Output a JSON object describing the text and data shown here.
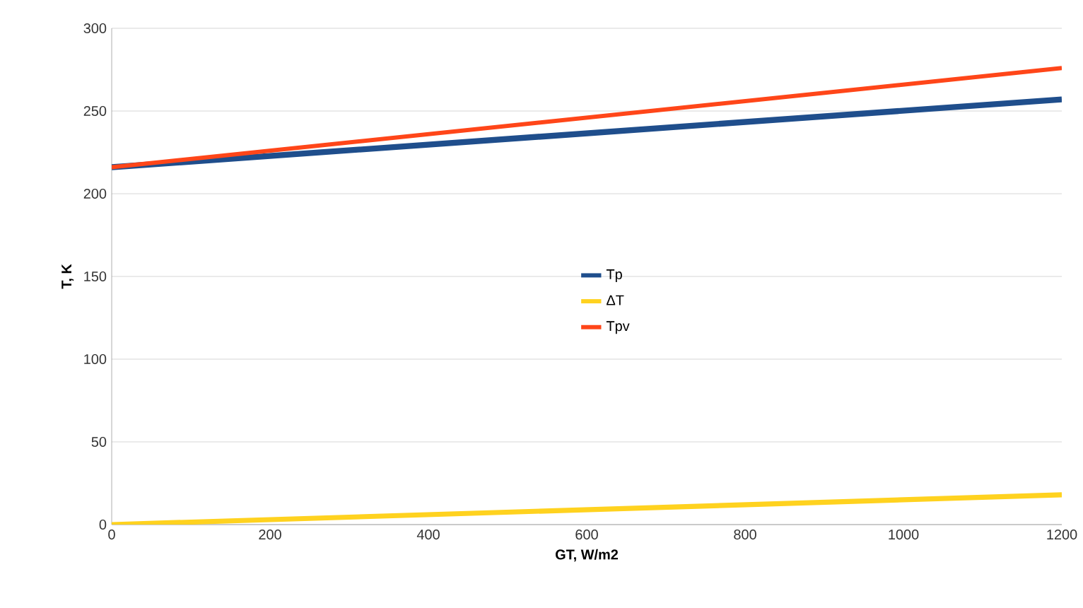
{
  "chart_data": {
    "type": "line",
    "xlabel": "GT, W/m2",
    "ylabel": "T, K",
    "x": [
      0,
      1200
    ],
    "series": [
      {
        "name": "Tp",
        "color": "#1f4e8c",
        "values": [
          216,
          257
        ]
      },
      {
        "name": "ΔT",
        "color": "#ffd21f",
        "values": [
          0,
          18
        ]
      },
      {
        "name": "Tpv",
        "color": "#ff4619",
        "values": [
          216,
          276
        ]
      }
    ],
    "xlim": [
      0,
      1200
    ],
    "ylim": [
      0,
      300
    ],
    "xticks": [
      0,
      200,
      400,
      600,
      800,
      1000,
      1200
    ],
    "yticks": [
      0,
      50,
      100,
      150,
      200,
      250,
      300
    ],
    "grid": "y",
    "legend": "center",
    "line_style": "solid",
    "marker": "none"
  }
}
